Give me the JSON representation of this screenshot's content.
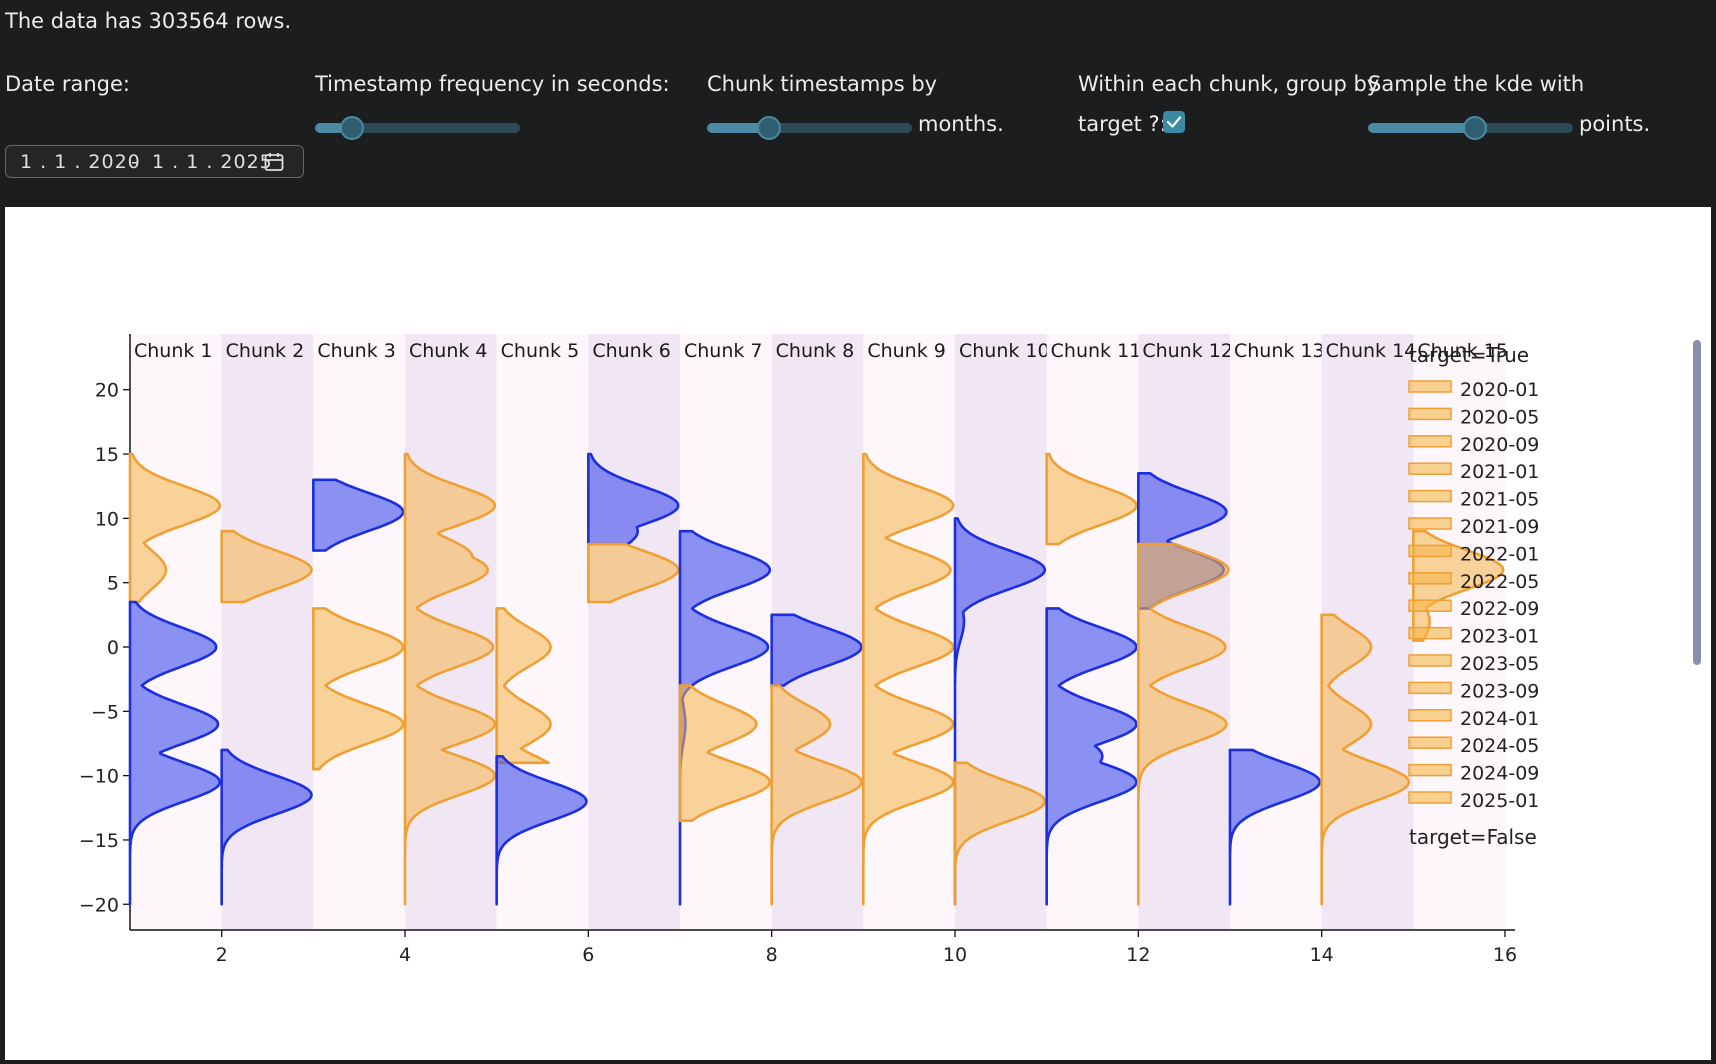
{
  "header": {
    "rows_text": "The data has 303564 rows.",
    "date_range_label": "Date range:",
    "date_start": "1 . 1 . 2020",
    "date_sep": "-",
    "date_end": "1 . 1 . 2025",
    "freq_label": "Timestamp frequency in seconds:",
    "freq_slider_value": 0.18,
    "chunk_label": "Chunk timestamps by",
    "chunk_unit": "months.",
    "chunk_slider_value": 0.3,
    "group_label_1": "Within each chunk, group by",
    "group_label_2": "target ?:",
    "group_checked": true,
    "kde_label": "Sample the kde with",
    "kde_unit": "points.",
    "kde_slider_value": 0.52
  },
  "chart_data": {
    "type": "violin",
    "xlim": [
      1,
      16
    ],
    "ylim": [
      -22,
      22
    ],
    "x_ticks": [
      2,
      4,
      6,
      8,
      10,
      12,
      14,
      16
    ],
    "y_ticks": [
      20,
      15,
      10,
      5,
      0,
      -5,
      -10,
      -15,
      -20
    ],
    "y_tick_labels": [
      "20",
      "15",
      "10",
      "5",
      "0",
      "−5",
      "−10",
      "−15",
      "−20"
    ],
    "chunks": [
      "Chunk 1",
      "Chunk 2",
      "Chunk 3",
      "Chunk 4",
      "Chunk 5",
      "Chunk 6",
      "Chunk 7",
      "Chunk 8",
      "Chunk 9",
      "Chunk 10",
      "Chunk 11",
      "Chunk 12",
      "Chunk 13",
      "Chunk 14",
      "Chunk 15"
    ],
    "colors": {
      "true_fill": "#f5b54a",
      "true_line": "#efa035",
      "false_fill": "#4650ee",
      "false_line": "#1b2ee0",
      "band_even": "#fdf7fb",
      "band_odd": "#f1e6f3"
    },
    "legend_true_title": "target=True",
    "legend_false_title": "target=False",
    "legend_items": [
      "2020-01",
      "2020-05",
      "2020-09",
      "2021-01",
      "2021-05",
      "2021-09",
      "2022-01",
      "2022-05",
      "2022-09",
      "2023-01",
      "2023-05",
      "2023-09",
      "2024-01",
      "2024-05",
      "2024-09",
      "2025-01"
    ],
    "violins": [
      {
        "x": 1,
        "target": "True",
        "peaks": [
          [
            11,
            1.0
          ],
          [
            6,
            0.4
          ]
        ],
        "range": [
          3.5,
          15
        ]
      },
      {
        "x": 1,
        "target": "False",
        "peaks": [
          [
            0,
            0.96
          ],
          [
            -6,
            0.98
          ],
          [
            -8.5,
            0.32
          ],
          [
            -10.5,
            1.0
          ]
        ],
        "range": [
          -20,
          3.5
        ]
      },
      {
        "x": 2,
        "target": "True",
        "peaks": [
          [
            6,
            1.0
          ]
        ],
        "range": [
          3.5,
          9
        ]
      },
      {
        "x": 2,
        "target": "False",
        "peaks": [
          [
            -11.5,
            1.0
          ]
        ],
        "range": [
          -20,
          -8
        ]
      },
      {
        "x": 3,
        "target": "False",
        "peaks": [
          [
            10.5,
            1.0
          ]
        ],
        "range": [
          7.5,
          13
        ]
      },
      {
        "x": 3,
        "target": "True",
        "peaks": [
          [
            0,
            1.0
          ],
          [
            -6,
            1.0
          ]
        ],
        "range": [
          -9.5,
          3
        ]
      },
      {
        "x": 4,
        "target": "True",
        "peaks": [
          [
            11,
            1.0
          ],
          [
            7,
            0.75
          ],
          [
            6,
            0.92
          ],
          [
            0,
            0.98
          ],
          [
            -6,
            1.0
          ],
          [
            -10,
            1.0
          ]
        ],
        "range": [
          -20,
          15
        ]
      },
      {
        "x": 5,
        "target": "True",
        "peaks": [
          [
            0,
            0.6
          ],
          [
            -6,
            0.6
          ],
          [
            -10,
            0.72
          ]
        ],
        "range": [
          -9,
          3
        ]
      },
      {
        "x": 5,
        "target": "False",
        "peaks": [
          [
            -12,
            1.0
          ]
        ],
        "range": [
          -20,
          -8.5
        ]
      },
      {
        "x": 6,
        "target": "False",
        "peaks": [
          [
            11,
            1.0
          ],
          [
            9,
            0.55
          ]
        ],
        "range": [
          8,
          15
        ]
      },
      {
        "x": 6,
        "target": "True",
        "peaks": [
          [
            6,
            1.0
          ]
        ],
        "range": [
          3.5,
          8
        ]
      },
      {
        "x": 7,
        "target": "False",
        "peaks": [
          [
            6,
            1.0
          ],
          [
            0,
            0.98
          ],
          [
            -6,
            0.06
          ]
        ],
        "range": [
          -20,
          9
        ]
      },
      {
        "x": 7,
        "target": "True",
        "peaks": [
          [
            -6,
            0.85
          ],
          [
            -10.5,
            1.0
          ]
        ],
        "range": [
          -13.5,
          -3
        ]
      },
      {
        "x": 8,
        "target": "False",
        "peaks": [
          [
            0,
            1.0
          ]
        ],
        "range": [
          -3,
          2.5
        ]
      },
      {
        "x": 8,
        "target": "True",
        "peaks": [
          [
            -6,
            0.65
          ],
          [
            -10.5,
            1.0
          ]
        ],
        "range": [
          -20,
          -3
        ]
      },
      {
        "x": 9,
        "target": "True",
        "peaks": [
          [
            11,
            1.0
          ],
          [
            6,
            0.97
          ],
          [
            0,
            1.0
          ],
          [
            -6,
            1.0
          ],
          [
            -10.5,
            1.0
          ]
        ],
        "range": [
          -20,
          15
        ]
      },
      {
        "x": 10,
        "target": "False",
        "peaks": [
          [
            6,
            1.0
          ],
          [
            2,
            0.1
          ]
        ],
        "range": [
          -20,
          10
        ]
      },
      {
        "x": 10,
        "target": "True",
        "peaks": [
          [
            -12,
            1.0
          ]
        ],
        "range": [
          -20,
          -9
        ]
      },
      {
        "x": 11,
        "target": "True",
        "peaks": [
          [
            11,
            1.0
          ]
        ],
        "range": [
          8,
          15
        ]
      },
      {
        "x": 11,
        "target": "False",
        "peaks": [
          [
            0,
            1.0
          ],
          [
            -6,
            1.0
          ],
          [
            -8.5,
            0.62
          ],
          [
            -10.5,
            1.0
          ]
        ],
        "range": [
          -20,
          3
        ]
      },
      {
        "x": 12,
        "target": "False",
        "peaks": [
          [
            10.5,
            0.98
          ],
          [
            6,
            0.95
          ]
        ],
        "range": [
          3,
          13.5
        ]
      },
      {
        "x": 12,
        "target": "True",
        "peaks": [
          [
            6,
            1.0
          ],
          [
            0,
            0.97
          ],
          [
            -6,
            0.98
          ]
        ],
        "range": [
          -20,
          8
        ]
      },
      {
        "x": 13,
        "target": "False",
        "peaks": [
          [
            -10.5,
            1.0
          ]
        ],
        "range": [
          -20,
          -8
        ]
      },
      {
        "x": 14,
        "target": "True",
        "peaks": [
          [
            0,
            0.55
          ],
          [
            -6,
            0.55
          ],
          [
            -10.5,
            0.97
          ]
        ],
        "range": [
          -20,
          2.5
        ]
      },
      {
        "x": 15,
        "target": "True",
        "peaks": [
          [
            6,
            1.0
          ],
          [
            2,
            0.18
          ]
        ],
        "range": [
          0.5,
          9
        ]
      }
    ]
  }
}
